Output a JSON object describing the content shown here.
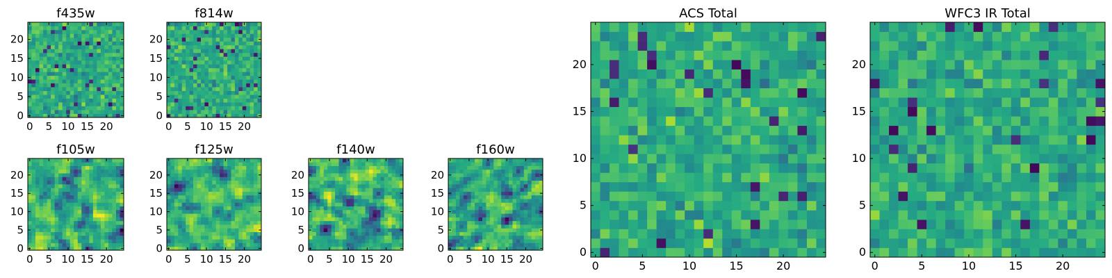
{
  "figure": {
    "description_panels": [
      "f435w",
      "f814w",
      "f105w",
      "f125w",
      "f140w",
      "f160w",
      "ACS Total",
      "WFC3 IR Total"
    ]
  },
  "chart_data": [
    {
      "type": "heatmap",
      "title": "f435w",
      "grid_size": [
        25,
        25
      ],
      "xlim": [
        -0.5,
        24.5
      ],
      "ylim": [
        -0.5,
        24.5
      ],
      "xticks": [
        0,
        5,
        10,
        15,
        20
      ],
      "yticks": [
        0,
        5,
        10,
        15,
        20
      ],
      "colormap": "viridis",
      "seed": 435,
      "smooth": 0,
      "grid": false
    },
    {
      "type": "heatmap",
      "title": "f814w",
      "grid_size": [
        25,
        25
      ],
      "xlim": [
        -0.5,
        24.5
      ],
      "ylim": [
        -0.5,
        24.5
      ],
      "xticks": [
        0,
        5,
        10,
        15,
        20
      ],
      "yticks": [
        0,
        5,
        10,
        15,
        20
      ],
      "colormap": "viridis",
      "seed": 814,
      "smooth": 0,
      "grid": false
    },
    {
      "type": "heatmap",
      "title": "f105w",
      "grid_size": [
        25,
        25
      ],
      "xlim": [
        -0.5,
        24.5
      ],
      "ylim": [
        -0.5,
        24.5
      ],
      "xticks": [
        0,
        5,
        10,
        15,
        20
      ],
      "yticks": [
        0,
        5,
        10,
        15,
        20
      ],
      "colormap": "viridis",
      "seed": 105,
      "smooth": 1,
      "grid": false
    },
    {
      "type": "heatmap",
      "title": "f125w",
      "grid_size": [
        25,
        25
      ],
      "xlim": [
        -0.5,
        24.5
      ],
      "ylim": [
        -0.5,
        24.5
      ],
      "xticks": [
        0,
        5,
        10,
        15,
        20
      ],
      "yticks": [
        0,
        5,
        10,
        15,
        20
      ],
      "colormap": "viridis",
      "seed": 125,
      "smooth": 1,
      "grid": false
    },
    {
      "type": "heatmap",
      "title": "f140w",
      "grid_size": [
        25,
        25
      ],
      "xlim": [
        -0.5,
        24.5
      ],
      "ylim": [
        -0.5,
        24.5
      ],
      "xticks": [
        0,
        5,
        10,
        15,
        20
      ],
      "yticks": [
        0,
        5,
        10,
        15,
        20
      ],
      "colormap": "viridis",
      "seed": 140,
      "smooth": 1,
      "grid": false
    },
    {
      "type": "heatmap",
      "title": "f160w",
      "grid_size": [
        25,
        25
      ],
      "xlim": [
        -0.5,
        24.5
      ],
      "ylim": [
        -0.5,
        24.5
      ],
      "xticks": [
        0,
        5,
        10,
        15,
        20
      ],
      "yticks": [
        0,
        5,
        10,
        15,
        20
      ],
      "colormap": "viridis",
      "seed": 160,
      "smooth": 1,
      "grid": false
    },
    {
      "type": "heatmap",
      "title": "ACS Total",
      "grid_size": [
        25,
        25
      ],
      "xlim": [
        -0.5,
        24.5
      ],
      "ylim": [
        -0.5,
        24.5
      ],
      "xticks": [
        0,
        5,
        10,
        15,
        20
      ],
      "yticks": [
        0,
        5,
        10,
        15,
        20
      ],
      "colormap": "viridis",
      "seed": 7001,
      "smooth": 0,
      "grid": false
    },
    {
      "type": "heatmap",
      "title": "WFC3 IR Total",
      "grid_size": [
        25,
        25
      ],
      "xlim": [
        -0.5,
        24.5
      ],
      "ylim": [
        -0.5,
        24.5
      ],
      "xticks": [
        0,
        5,
        10,
        15,
        20
      ],
      "yticks": [
        0,
        5,
        10,
        15,
        20
      ],
      "colormap": "viridis",
      "seed": 7002,
      "smooth": 0,
      "grid": false
    }
  ]
}
